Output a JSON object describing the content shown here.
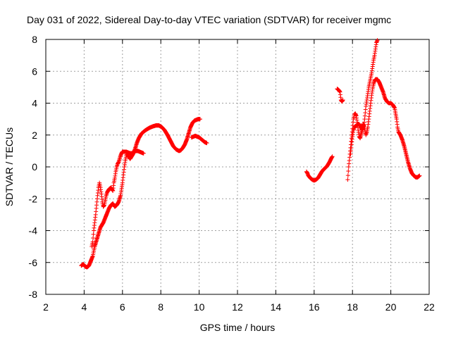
{
  "chart_data": {
    "type": "scatter",
    "title": "Day 031 of 2022, Sidereal Day-to-day VTEC variation (SDTVAR) for receiver mgmc",
    "xlabel": "GPS time / hours",
    "ylabel": "SDTVAR / TECUs",
    "xlim": [
      2,
      22
    ],
    "ylim": [
      -8,
      8
    ],
    "xticks": [
      2,
      4,
      6,
      8,
      10,
      12,
      14,
      16,
      18,
      20,
      22
    ],
    "yticks": [
      -8,
      -6,
      -4,
      -2,
      0,
      2,
      4,
      6,
      8
    ],
    "grid": true,
    "marker": "+",
    "color": "#ff0000",
    "series": [
      {
        "name": "SDTVAR",
        "segments": [
          [
            [
              3.85,
              -6.2
            ],
            [
              3.95,
              -6.1
            ],
            [
              4.05,
              -6.25
            ],
            [
              4.15,
              -6.3
            ],
            [
              4.25,
              -6.2
            ],
            [
              4.35,
              -5.9
            ],
            [
              4.45,
              -5.6
            ],
            [
              4.5,
              -5.3
            ],
            [
              4.55,
              -5.0
            ],
            [
              4.65,
              -4.6
            ],
            [
              4.75,
              -4.2
            ],
            [
              4.85,
              -3.8
            ],
            [
              5.0,
              -3.5
            ],
            [
              5.1,
              -3.2
            ],
            [
              5.2,
              -2.9
            ],
            [
              5.3,
              -2.6
            ],
            [
              5.4,
              -2.4
            ],
            [
              5.5,
              -2.3
            ],
            [
              5.6,
              -2.5
            ],
            [
              5.7,
              -2.4
            ],
            [
              5.8,
              -2.2
            ],
            [
              5.9,
              -1.8
            ],
            [
              6.0,
              -1.0
            ],
            [
              6.05,
              -0.5
            ],
            [
              6.1,
              0.0
            ],
            [
              6.15,
              0.4
            ],
            [
              6.2,
              0.7
            ],
            [
              6.25,
              0.9
            ],
            [
              6.3,
              0.7
            ],
            [
              6.4,
              0.5
            ],
            [
              6.45,
              0.6
            ],
            [
              6.55,
              0.8
            ],
            [
              6.65,
              1.1
            ],
            [
              6.75,
              1.5
            ],
            [
              6.85,
              1.8
            ],
            [
              7.0,
              2.1
            ],
            [
              7.2,
              2.3
            ],
            [
              7.4,
              2.45
            ],
            [
              7.6,
              2.55
            ],
            [
              7.75,
              2.6
            ],
            [
              7.9,
              2.6
            ],
            [
              8.05,
              2.5
            ],
            [
              8.2,
              2.3
            ],
            [
              8.35,
              2.0
            ],
            [
              8.5,
              1.65
            ],
            [
              8.65,
              1.3
            ],
            [
              8.8,
              1.1
            ],
            [
              8.95,
              1.0
            ],
            [
              9.05,
              1.05
            ],
            [
              9.15,
              1.2
            ],
            [
              9.25,
              1.4
            ],
            [
              9.35,
              1.7
            ],
            [
              9.45,
              2.1
            ],
            [
              9.55,
              2.5
            ],
            [
              9.65,
              2.75
            ],
            [
              9.75,
              2.9
            ],
            [
              9.85,
              2.95
            ],
            [
              9.95,
              3.0
            ],
            [
              10.05,
              3.0
            ]
          ],
          [
            [
              4.4,
              -5.0
            ],
            [
              4.45,
              -4.7
            ],
            [
              4.5,
              -4.0
            ],
            [
              4.55,
              -3.5
            ],
            [
              4.6,
              -3.0
            ],
            [
              4.65,
              -2.4
            ],
            [
              4.7,
              -1.8
            ],
            [
              4.75,
              -1.3
            ],
            [
              4.8,
              -1.0
            ],
            [
              4.85,
              -1.3
            ],
            [
              4.9,
              -1.7
            ],
            [
              4.95,
              -2.2
            ],
            [
              5.0,
              -2.5
            ],
            [
              5.05,
              -2.4
            ],
            [
              5.1,
              -2.1
            ],
            [
              5.15,
              -1.8
            ],
            [
              5.2,
              -1.6
            ],
            [
              5.3,
              -1.4
            ],
            [
              5.4,
              -1.3
            ],
            [
              5.5,
              -1.5
            ],
            [
              5.55,
              -1.0
            ],
            [
              5.6,
              -0.7
            ],
            [
              5.65,
              -0.3
            ],
            [
              5.7,
              0.0
            ],
            [
              5.75,
              0.2
            ],
            [
              5.8,
              0.3
            ],
            [
              5.85,
              0.5
            ],
            [
              5.9,
              0.7
            ],
            [
              5.95,
              0.85
            ],
            [
              6.0,
              0.95
            ],
            [
              6.1,
              0.95
            ],
            [
              6.2,
              0.95
            ],
            [
              6.3,
              0.9
            ],
            [
              6.4,
              0.85
            ],
            [
              6.5,
              0.85
            ],
            [
              6.6,
              0.95
            ],
            [
              6.7,
              1.0
            ],
            [
              6.8,
              1.0
            ],
            [
              6.9,
              0.95
            ],
            [
              7.0,
              0.9
            ],
            [
              7.1,
              0.85
            ]
          ],
          [
            [
              9.6,
              1.85
            ],
            [
              9.7,
              1.9
            ],
            [
              9.8,
              1.95
            ],
            [
              9.9,
              1.9
            ],
            [
              10.0,
              1.85
            ],
            [
              10.1,
              1.75
            ],
            [
              10.2,
              1.65
            ],
            [
              10.3,
              1.55
            ],
            [
              10.4,
              1.5
            ]
          ],
          [
            [
              15.6,
              -0.3
            ],
            [
              15.65,
              -0.4
            ],
            [
              15.7,
              -0.55
            ],
            [
              15.8,
              -0.7
            ],
            [
              15.9,
              -0.8
            ],
            [
              16.0,
              -0.85
            ],
            [
              16.1,
              -0.8
            ],
            [
              16.2,
              -0.7
            ],
            [
              16.3,
              -0.5
            ],
            [
              16.4,
              -0.3
            ],
            [
              16.5,
              -0.15
            ],
            [
              16.6,
              -0.05
            ],
            [
              16.7,
              0.1
            ],
            [
              16.8,
              0.3
            ],
            [
              16.9,
              0.55
            ],
            [
              16.95,
              0.65
            ]
          ],
          [
            [
              17.2,
              4.9
            ],
            [
              17.3,
              4.8
            ],
            [
              17.35,
              4.7
            ],
            [
              17.4,
              4.2
            ],
            [
              17.45,
              4.1
            ],
            [
              17.5,
              4.2
            ]
          ],
          [
            [
              17.75,
              -0.8
            ],
            [
              17.8,
              0.0
            ],
            [
              17.85,
              0.6
            ],
            [
              17.9,
              1.2
            ],
            [
              17.95,
              1.8
            ],
            [
              18.0,
              2.4
            ],
            [
              18.05,
              3.0
            ],
            [
              18.1,
              3.3
            ],
            [
              18.15,
              3.35
            ],
            [
              18.2,
              3.2
            ],
            [
              18.25,
              2.8
            ],
            [
              18.3,
              2.3
            ],
            [
              18.35,
              1.9
            ],
            [
              18.4,
              1.8
            ],
            [
              18.5,
              2.3
            ],
            [
              18.55,
              2.7
            ],
            [
              18.6,
              2.6
            ],
            [
              18.65,
              2.3
            ],
            [
              18.7,
              2.0
            ],
            [
              18.75,
              2.2
            ],
            [
              18.8,
              2.5
            ],
            [
              18.85,
              3.0
            ],
            [
              18.9,
              3.5
            ],
            [
              18.95,
              4.0
            ],
            [
              19.0,
              4.5
            ],
            [
              19.05,
              4.9
            ],
            [
              19.1,
              5.2
            ],
            [
              19.15,
              5.4
            ],
            [
              19.2,
              5.5
            ],
            [
              19.3,
              5.5
            ],
            [
              19.4,
              5.3
            ],
            [
              19.5,
              5.0
            ],
            [
              19.6,
              4.7
            ],
            [
              19.7,
              4.3
            ],
            [
              19.8,
              4.1
            ],
            [
              19.9,
              4.0
            ],
            [
              20.0,
              4.0
            ],
            [
              20.1,
              3.9
            ],
            [
              20.2,
              3.7
            ],
            [
              20.3,
              3.0
            ],
            [
              20.35,
              2.5
            ],
            [
              20.4,
              2.2
            ],
            [
              20.5,
              2.0
            ],
            [
              20.6,
              1.7
            ],
            [
              20.7,
              1.3
            ],
            [
              20.8,
              0.8
            ],
            [
              20.9,
              0.3
            ],
            [
              21.0,
              -0.1
            ],
            [
              21.1,
              -0.4
            ],
            [
              21.2,
              -0.55
            ],
            [
              21.3,
              -0.65
            ],
            [
              21.4,
              -0.65
            ],
            [
              21.5,
              -0.55
            ]
          ],
          [
            [
              17.9,
              0.8
            ],
            [
              17.95,
              1.4
            ],
            [
              18.0,
              1.9
            ],
            [
              18.05,
              2.3
            ],
            [
              18.1,
              2.5
            ],
            [
              18.2,
              2.6
            ],
            [
              18.3,
              2.7
            ],
            [
              18.4,
              2.6
            ],
            [
              18.5,
              2.3
            ],
            [
              18.6,
              2.6
            ],
            [
              18.65,
              3.2
            ],
            [
              18.7,
              3.8
            ],
            [
              18.75,
              4.2
            ],
            [
              18.8,
              4.6
            ],
            [
              18.85,
              5.0
            ],
            [
              18.9,
              5.3
            ],
            [
              18.95,
              5.6
            ],
            [
              19.0,
              5.9
            ],
            [
              19.05,
              6.3
            ],
            [
              19.1,
              6.7
            ],
            [
              19.15,
              7.0
            ],
            [
              19.2,
              7.4
            ],
            [
              19.25,
              7.8
            ],
            [
              19.3,
              7.95
            ]
          ]
        ]
      }
    ]
  }
}
